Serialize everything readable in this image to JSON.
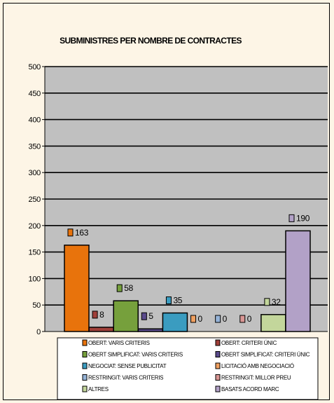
{
  "chart_data": {
    "type": "bar",
    "title": "SUBMINISTRES PER NOMBRE DE CONTRACTES",
    "xlabel": "",
    "ylabel": "",
    "ylim": [
      0,
      500
    ],
    "yticks": [
      0,
      50,
      100,
      150,
      200,
      250,
      300,
      350,
      400,
      450,
      500
    ],
    "grid": true,
    "legend_position": "bottom",
    "plot_background": "#c0c0c0",
    "series": [
      {
        "name": "OBERT: VARIS CRITERIS",
        "value": 163,
        "label": "163",
        "color": "#e8730c"
      },
      {
        "name": "OBERT: CRITERI ÚNIC",
        "value": 8,
        "label": "8",
        "color": "#a0403a"
      },
      {
        "name": "OBERT SIMPLIFICAT: VARIS CRITERIS",
        "value": 58,
        "label": "58",
        "color": "#76a03c"
      },
      {
        "name": "OBERT SIMPLIFICAT: CRITERI ÚNIC",
        "value": 5,
        "label": "5",
        "color": "#5a4a8c"
      },
      {
        "name": "NEGOCIAT: SENSE PUBLICITAT",
        "value": 35,
        "label": "35",
        "color": "#3a9cc0"
      },
      {
        "name": "LICITACIÓ AMB NEGOCIACIÓ",
        "value": 0,
        "label": "0",
        "color": "#f0a060"
      },
      {
        "name": "RESTRINGIT: VARIS CRITERIS",
        "value": 0,
        "label": "0",
        "color": "#95b3d7"
      },
      {
        "name": "RESTRINGIT: MILLOR PREU",
        "value": 0,
        "label": "0",
        "color": "#d99694"
      },
      {
        "name": "ALTRES",
        "value": 32,
        "label": "32",
        "color": "#c3d69b"
      },
      {
        "name": "BASATS ACORD MARC",
        "value": 190,
        "label": "190",
        "color": "#b2a1c7"
      }
    ]
  }
}
